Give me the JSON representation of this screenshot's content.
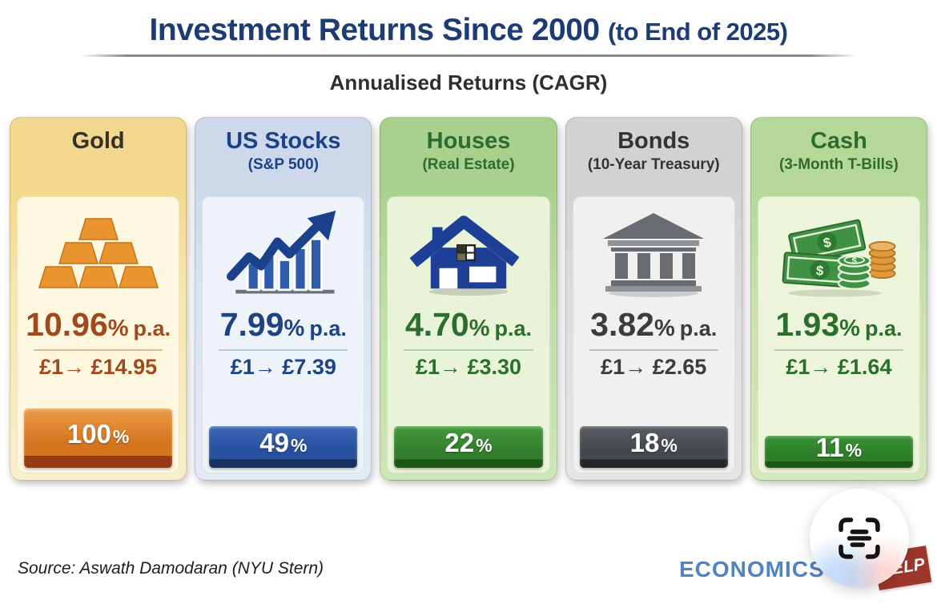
{
  "header": {
    "title": "Investment Returns Since 2000",
    "title_suffix": "(to End of 2025)",
    "subtitle": "Annualised Returns (CAGR)"
  },
  "cards": [
    {
      "title": "Gold",
      "subtitle": "",
      "icon": "gold-bars-icon",
      "annual_return": {
        "value": "10.96",
        "unit": "%",
        "suffix": "p.a."
      },
      "growth": "£1→ £14.95",
      "bar": {
        "label": "100",
        "suffix": "%",
        "value": 100
      },
      "colors": {
        "header-bg": "#f2d88c",
        "frame-mid": "#f6e6ae",
        "frame-bot": "#f9efca",
        "panel-bg": "#fdf7e0",
        "title": "#353028",
        "accent": "#9e4a1e",
        "divider": "#d9bd92",
        "bar-top": "#eb9b45",
        "bar-mid": "#d4741f",
        "bar-dark": "#993816"
      }
    },
    {
      "title": "US Stocks",
      "subtitle": "(S&P 500)",
      "icon": "stock-chart-icon",
      "annual_return": {
        "value": "7.99",
        "unit": "%",
        "suffix": "p.a."
      },
      "growth": "£1→ £7.39",
      "bar": {
        "label": "49",
        "suffix": "%",
        "value": 49
      },
      "colors": {
        "header-bg": "#cdd9ea",
        "frame-mid": "#d9e3f0",
        "frame-bot": "#e2eaf5",
        "panel-bg": "#eef3f9",
        "title": "#1c4285",
        "accent": "#1d4383",
        "divider": "#b9c8dc",
        "bar-top": "#3a66b4",
        "bar-mid": "#27509f",
        "bar-dark": "#16305f"
      }
    },
    {
      "title": "Houses",
      "subtitle": "(Real Estate)",
      "icon": "house-icon",
      "annual_return": {
        "value": "4.70",
        "unit": "%",
        "suffix": "p.a."
      },
      "growth": "£1→ £3.30",
      "bar": {
        "label": "22",
        "suffix": "%",
        "value": 22
      },
      "colors": {
        "header-bg": "#a9d08d",
        "frame-mid": "#bedda4",
        "frame-bot": "#cde6b6",
        "panel-bg": "#e9f3d7",
        "title": "#2d6b2f",
        "accent": "#2c6e2e",
        "divider": "#b6d49a",
        "bar-top": "#449a3e",
        "bar-mid": "#327e2c",
        "bar-dark": "#1d5718"
      }
    },
    {
      "title": "Bonds",
      "subtitle": "(10-Year Treasury)",
      "icon": "bank-icon",
      "annual_return": {
        "value": "3.82",
        "unit": "%",
        "suffix": "p.a."
      },
      "growth": "£1→ £2.65",
      "bar": {
        "label": "18",
        "suffix": "%",
        "value": 18
      },
      "colors": {
        "header-bg": "#d2d2d0",
        "frame-mid": "#dddddb",
        "frame-bot": "#e5e5e3",
        "panel-bg": "#f0f0ee",
        "title": "#333333",
        "accent": "#3c3c3c",
        "divider": "#bfbfbd",
        "bar-top": "#585d61",
        "bar-mid": "#45494d",
        "bar-dark": "#24272a"
      }
    },
    {
      "title": "Cash",
      "subtitle": "(3-Month T-Bills)",
      "icon": "cash-icon",
      "annual_return": {
        "value": "1.93",
        "unit": "%",
        "suffix": "p.a."
      },
      "growth": "£1→ £1.64",
      "bar": {
        "label": "11",
        "suffix": "%",
        "value": 11
      },
      "colors": {
        "header-bg": "#b5d899",
        "frame-mid": "#c6e2ab",
        "frame-bot": "#d3eaba",
        "panel-bg": "#ecf5da",
        "title": "#2d6b2f",
        "accent": "#2c6e2e",
        "divider": "#b6d49a",
        "bar-top": "#3a9234",
        "bar-mid": "#2c7e28",
        "bar-dark": "#1a5716"
      }
    }
  ],
  "footer": {
    "source": "Source: Aswath Damodaran (NYU Stern)",
    "logo": {
      "word1": "ECONOMICS",
      "word2": "HELP"
    }
  },
  "overlay": {
    "scan_button_icon": "live-text-scan-icon"
  },
  "chart_data": {
    "type": "bar",
    "title": "Investment Returns Since 2000 (to End of 2025)",
    "subtitle": "Annualised Returns (CAGR)",
    "categories": [
      "Gold",
      "US Stocks (S&P 500)",
      "Houses (Real Estate)",
      "Bonds (10-Year Treasury)",
      "Cash (3-Month T-Bills)"
    ],
    "series": [
      {
        "name": "Annualised return (% p.a., CAGR)",
        "values": [
          10.96,
          7.99,
          4.7,
          3.82,
          1.93
        ]
      },
      {
        "name": "Growth of £1 (£)",
        "values": [
          14.95,
          7.39,
          3.3,
          2.65,
          1.64
        ]
      },
      {
        "name": "Footer bar share (%)",
        "values": [
          100,
          49,
          22,
          18,
          11
        ]
      }
    ],
    "source": "Source: Aswath Damodaran (NYU Stern)",
    "legend_position": "none",
    "grid": false
  }
}
